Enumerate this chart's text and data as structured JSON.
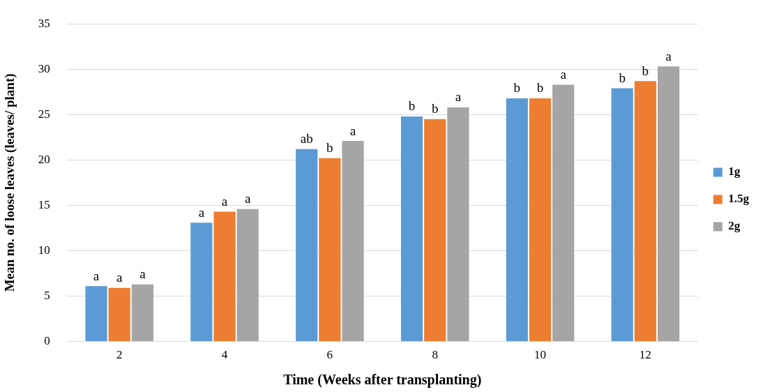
{
  "chart_data": {
    "type": "bar",
    "xlabel": "Time (Weeks after transplanting)",
    "ylabel": "Mean no. of loose leaves (leaves/ plant)",
    "categories": [
      "2",
      "4",
      "6",
      "8",
      "10",
      "12"
    ],
    "series": [
      {
        "name": "1g",
        "color": "#5b9bd5",
        "values": [
          6.1,
          13.1,
          21.2,
          24.8,
          26.8,
          27.9
        ],
        "value_labels": [
          "a",
          "a",
          "ab",
          "b",
          "b",
          "b"
        ]
      },
      {
        "name": "1.5g",
        "color": "#ed7d31",
        "values": [
          5.9,
          14.3,
          20.2,
          24.5,
          26.8,
          28.7
        ],
        "value_labels": [
          "a",
          "a",
          "b",
          "b",
          "b",
          "b"
        ]
      },
      {
        "name": "2g",
        "color": "#a5a5a5",
        "values": [
          6.3,
          14.6,
          22.1,
          25.8,
          28.3,
          30.3
        ],
        "value_labels": [
          "a",
          "a",
          "a",
          "a",
          "a",
          "a"
        ]
      }
    ],
    "ylim": [
      0,
      35
    ],
    "yticks": [
      0,
      5,
      10,
      15,
      20,
      25,
      30,
      35
    ],
    "grid": "y",
    "legend": "right"
  }
}
